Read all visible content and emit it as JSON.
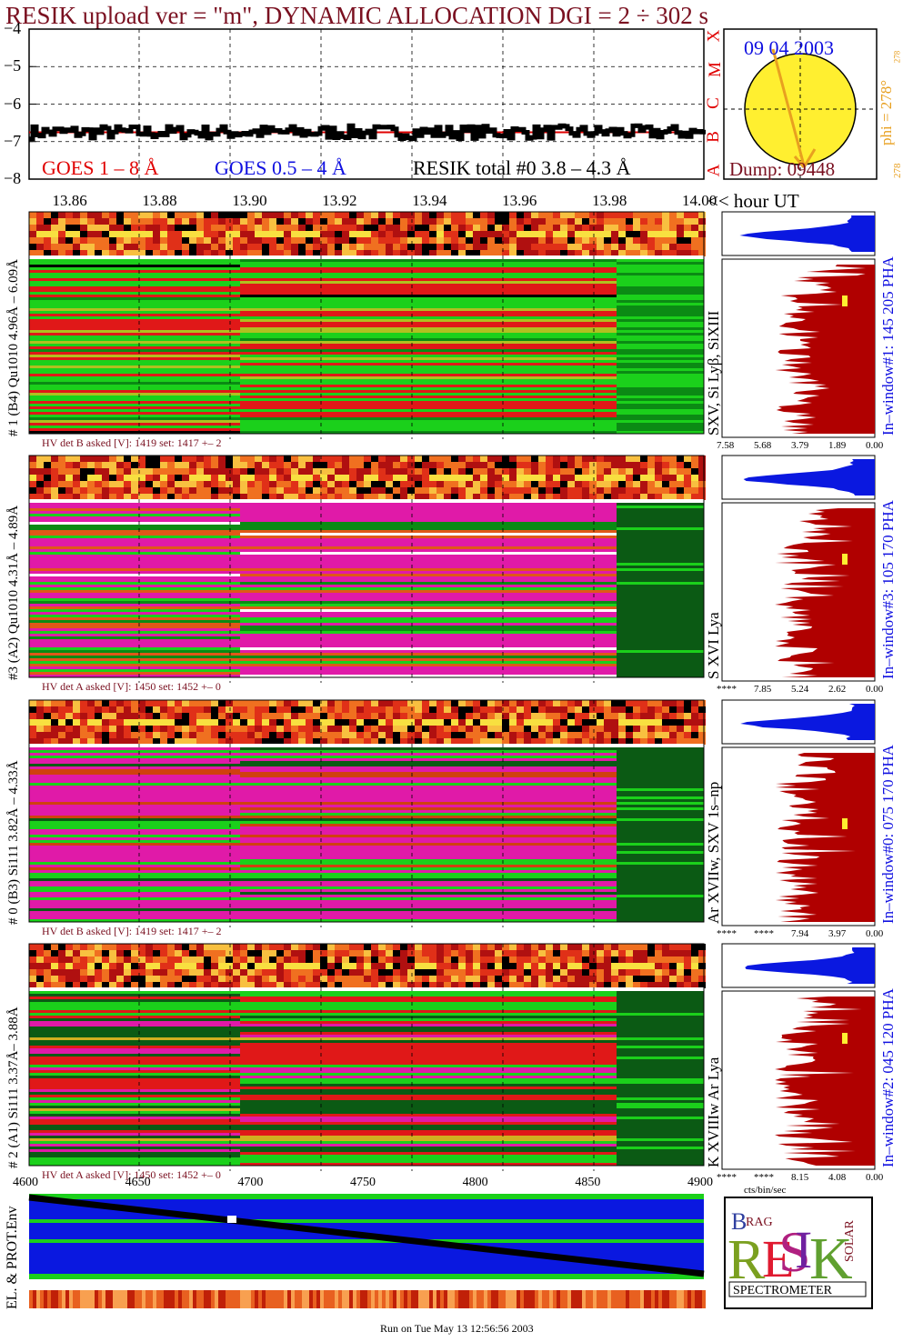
{
  "title": "RESIK upload ver = \"m\", DYNAMIC ALLOCATION  DGI =   2 ÷ 302 s",
  "footer": "Run on Tue May 13 12:56:56 2003",
  "colors": {
    "title": "#7a1020",
    "goes18": "#e00000",
    "goes054": "#1010e0",
    "blue": "#0a18e0",
    "darkred": "#b00000",
    "green": "#1bd01b",
    "magenta": "#e01aa8",
    "darkgreen": "#0b5a14",
    "yellow": "#ffef30",
    "orange": "#e8a020"
  },
  "lightcurve": {
    "legend_goes18": "GOES 1 – 8 Å",
    "legend_goes054": "GOES 0.5 – 4 Å",
    "legend_resik": "RESIK total #0  3.8 – 4.3 Å",
    "yticks": [
      "−4",
      "−5",
      "−6",
      "−7",
      "−8"
    ],
    "ylim": [
      -8,
      -4
    ],
    "level": -6.75
  },
  "flare_letters": [
    "X",
    "M",
    "C",
    "B",
    "A"
  ],
  "sun": {
    "date": "09 04 2003",
    "dump": "Dump: 09448",
    "phi": "phi = 278°",
    "phi_small": "278",
    "phi_bottom": "278"
  },
  "time_axis": {
    "ticks": [
      "13.86",
      "13.88",
      "13.90",
      "13.92",
      "13.94",
      "13.96",
      "13.98",
      "14.00"
    ],
    "unit": "<< hour UT",
    "range": [
      13.85,
      14.0
    ]
  },
  "channels": [
    {
      "label": "# 1 (B4) Qu1010 4.96Å – 6.09Å",
      "line_id": "SXV, Si Lyβ, SiXIII",
      "window": "In–window#1:  145 205 PHA",
      "hv": "HV det B asked [V]:  1419 set:  1417 +–   2",
      "ticks": [
        "7.58",
        "5.68",
        "3.79",
        "1.89",
        "0.00"
      ],
      "scheme": "green"
    },
    {
      "label": "#3 (A2) Qu1010  4.31Å – 4.89Å",
      "line_id": "S XVI Lya",
      "window": "In–window#3:  105 170 PHA",
      "hv": "HV det A asked [V]:  1450 set:  1452 +–   0",
      "ticks": [
        "****",
        "7.85",
        "5.24",
        "2.62",
        "0.00"
      ],
      "scheme": "magenta"
    },
    {
      "label": "# 0 (B3) Si111  3.82Å – 4.33Å",
      "line_id": "Ar XVIIw,  SXV 1s–np",
      "window": "In–window#0:  075 170 PHA",
      "hv": "HV det B asked [V]:  1419 set:  1417 +–   2",
      "ticks": [
        "****",
        "****",
        "7.94",
        "3.97",
        "0.00"
      ],
      "scheme": "magenta2"
    },
    {
      "label": "# 2 (A1) Si111  3.37Å– 3.88Å",
      "line_id": "K XVIIIw  Ar Lya",
      "window": "In–window#2:  045 120 PHA",
      "hv": "HV det A asked [V]:  1450 set:  1452 +–   0",
      "ticks": [
        "****",
        "****",
        "8.15",
        "4.08",
        "0.00"
      ],
      "scheme": "mixed",
      "xunit": "cts/bin/sec"
    }
  ],
  "bottom_axis": {
    "ticks": [
      "4600",
      "4650",
      "4700",
      "4750",
      "4800",
      "4850",
      "4900"
    ],
    "range": [
      4600,
      4900
    ]
  },
  "env_label": "EL. & PROT.Env",
  "logo": {
    "letters": "RESIK",
    "top": "BRAG",
    "side": "SOLAR",
    "caption": "SPECTROMETER"
  }
}
